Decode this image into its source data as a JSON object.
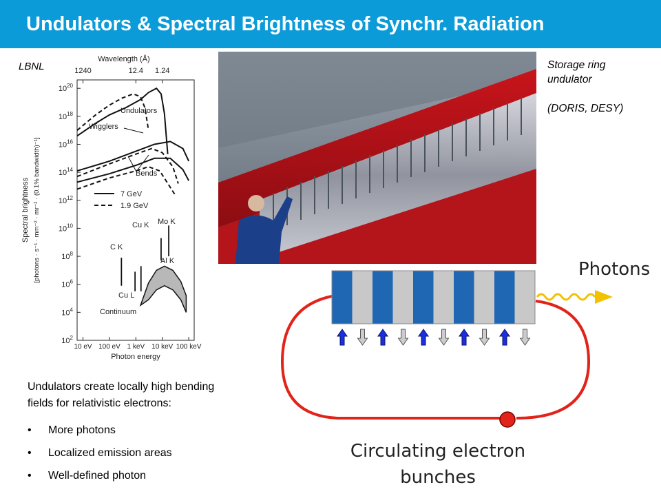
{
  "slide": {
    "title": "Undulators & Spectral Brightness of Synchr. Radiation"
  },
  "source_label": "LBNL",
  "photo": {
    "caption_lines": [
      "Storage ring",
      "undulator",
      "(DORIS, DESY)"
    ]
  },
  "text_block": {
    "intro_lines": [
      "Undulators create locally high bending",
      "fields for relativistic electrons:"
    ],
    "bullets": [
      "More photons",
      "Localized emission areas",
      "Well-defined photon"
    ]
  },
  "diagram": {
    "photons_label": "Photons",
    "bunches_label_lines": [
      "Circulating electron",
      "bunches"
    ],
    "colors": {
      "ring": "#e2231a",
      "magnet_dark": "#1f66b3",
      "magnet_light": "#c8c8c8",
      "arrow_up": "#1b2ee0",
      "arrow_down": "#cccccc",
      "photon_wave": "#f2c200",
      "electron": "#e2231a"
    }
  },
  "chart_data": {
    "type": "line",
    "title": "",
    "top_axis_label": "Wavelength (Å)",
    "top_ticks": [
      "1240",
      "12.4",
      "1.24"
    ],
    "xlabel": "Photon energy",
    "ylabel": "Spectral brightness",
    "yunit": "[photons · s⁻¹ · mm⁻² · mr⁻² · (0.1% bandwidth)⁻¹]",
    "x_scale": "log",
    "x_ticks": [
      "10 eV",
      "100 eV",
      "1 keV",
      "10 keV",
      "100 keV"
    ],
    "x_tick_values": [
      10,
      100,
      1000,
      10000,
      100000
    ],
    "y_scale": "log",
    "y_ticks": [
      "10",
      "10",
      "10",
      "10",
      "10",
      "10",
      "10",
      "10",
      "10",
      "10"
    ],
    "y_exponents": [
      "2",
      "4",
      "6",
      "8",
      "10",
      "12",
      "14",
      "16",
      "18",
      "20"
    ],
    "y_exp_values": [
      2,
      4,
      6,
      8,
      10,
      12,
      14,
      16,
      18,
      20
    ],
    "curve_labels": [
      "Undulators",
      "Wigglers",
      "Bends"
    ],
    "legend": [
      {
        "label": "7 GeV",
        "style": "solid"
      },
      {
        "label": "1.9 GeV",
        "style": "dashed"
      }
    ],
    "series": [
      {
        "name": "Undulators",
        "style": "solid",
        "x": [
          6,
          30,
          100,
          400,
          1500,
          3000,
          6000,
          9000,
          12000,
          16000
        ],
        "y": [
          16.6,
          17.5,
          18.1,
          18.6,
          19.2,
          19.7,
          20.0,
          19.6,
          18.2,
          15.3
        ]
      },
      {
        "name": "Undulators",
        "style": "dashed",
        "x": [
          6,
          30,
          100,
          300,
          800,
          1500,
          2200,
          3000
        ],
        "y": [
          17.0,
          18.1,
          18.8,
          19.3,
          19.6,
          19.4,
          18.6,
          17.0
        ]
      },
      {
        "name": "Wigglers",
        "style": "solid",
        "x": [
          6,
          100,
          1000,
          5000,
          20000,
          60000,
          100000
        ],
        "y": [
          14.1,
          14.8,
          15.5,
          16.0,
          16.2,
          15.7,
          14.8
        ]
      },
      {
        "name": "Wigglers",
        "style": "dashed",
        "x": [
          6,
          100,
          1000,
          4000,
          10000,
          25000,
          40000
        ],
        "y": [
          13.7,
          14.6,
          15.3,
          15.7,
          15.4,
          14.4,
          13.2
        ]
      },
      {
        "name": "Bends",
        "style": "solid",
        "x": [
          6,
          100,
          1000,
          5000,
          20000,
          60000,
          100000
        ],
        "y": [
          13.3,
          13.9,
          14.5,
          15.0,
          15.0,
          14.2,
          13.4
        ]
      },
      {
        "name": "Bends",
        "style": "dashed",
        "x": [
          6,
          100,
          1000,
          3000,
          8000,
          15000,
          30000
        ],
        "y": [
          12.8,
          13.6,
          14.1,
          14.4,
          14.1,
          13.3,
          12.4
        ]
      }
    ],
    "lines": [
      {
        "label": "C K",
        "x": 284,
        "y_bottom": 5.9,
        "y_top": 7.9
      },
      {
        "label": "Cu L",
        "x": 930,
        "y_bottom": 5.5,
        "y_top": 6.9
      },
      {
        "label": "Al K",
        "x": 1560,
        "y_bottom": 5.5,
        "y_top": 7.3
      },
      {
        "label": "Cu K",
        "x": 8980,
        "y_bottom": 7.7,
        "y_top": 9.3
      },
      {
        "label": "Mo K",
        "x": 17500,
        "y_bottom": 8.0,
        "y_top": 10.2
      }
    ],
    "continuum": {
      "label": "Continuum",
      "upper": {
        "x": [
          1500,
          3000,
          6000,
          12000,
          25000,
          50000,
          80000
        ],
        "y": [
          4.5,
          6.1,
          7.0,
          7.3,
          7.0,
          6.2,
          5.2
        ]
      },
      "lower": {
        "x": [
          1500,
          3000,
          6000,
          12000,
          25000,
          50000,
          80000
        ],
        "y": [
          4.5,
          4.9,
          5.6,
          5.9,
          5.6,
          4.9,
          4.0
        ]
      }
    },
    "xlim": [
      6,
      160000
    ],
    "ylim": [
      2,
      20.6
    ]
  }
}
